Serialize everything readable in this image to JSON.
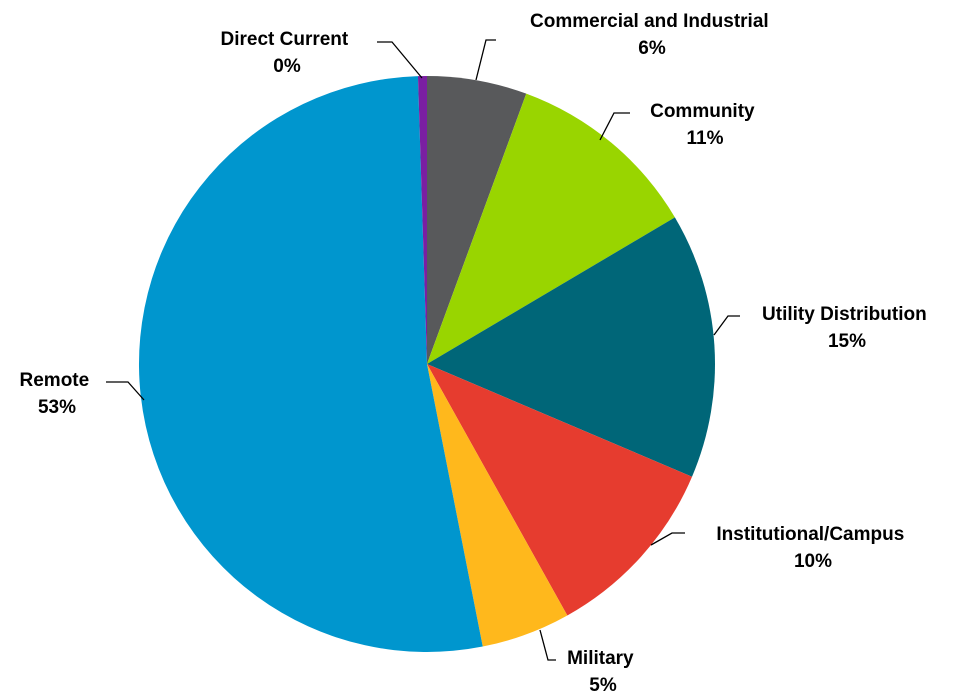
{
  "chart_data": {
    "type": "pie",
    "title": "",
    "slices": [
      {
        "name": "Commercial and Industrial",
        "value": 5.6,
        "label": "6%",
        "color": "#58595b"
      },
      {
        "name": "Community",
        "value": 10.9,
        "label": "11%",
        "color": "#99d500"
      },
      {
        "name": "Utility Distribution",
        "value": 14.9,
        "label": "15%",
        "color": "#006678"
      },
      {
        "name": "Institutional/Campus",
        "value": 10.5,
        "label": "10%",
        "color": "#e63c2f"
      },
      {
        "name": "Military",
        "value": 5.0,
        "label": "5%",
        "color": "#ffb81c"
      },
      {
        "name": "Remote",
        "value": 52.6,
        "label": "53%",
        "color": "#0096ce"
      },
      {
        "name": "Direct Current",
        "value": 0.5,
        "label": "0%",
        "color": "#7a1fa2"
      }
    ]
  }
}
